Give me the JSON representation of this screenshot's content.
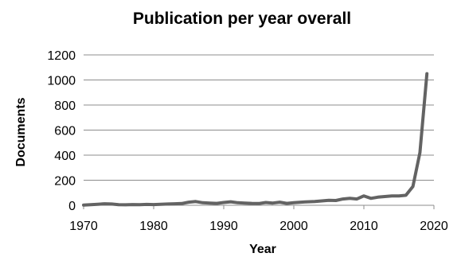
{
  "chart_data": {
    "type": "line",
    "title": "Publication per year overall",
    "xlabel": "Year",
    "ylabel": "Documents",
    "xlim": [
      1970,
      2020
    ],
    "ylim": [
      0,
      1200
    ],
    "xticks": [
      1970,
      1980,
      1990,
      2000,
      2010,
      2020
    ],
    "yticks": [
      0,
      200,
      400,
      600,
      800,
      1000,
      1200
    ],
    "grid": true,
    "legend": "none",
    "color": "#636363",
    "x": [
      1970,
      1971,
      1972,
      1973,
      1974,
      1975,
      1976,
      1977,
      1978,
      1979,
      1980,
      1981,
      1982,
      1983,
      1984,
      1985,
      1986,
      1987,
      1988,
      1989,
      1990,
      1991,
      1992,
      1993,
      1994,
      1995,
      1996,
      1997,
      1998,
      1999,
      2000,
      2001,
      2002,
      2003,
      2004,
      2005,
      2006,
      2007,
      2008,
      2009,
      2010,
      2011,
      2012,
      2013,
      2014,
      2015,
      2016,
      2017,
      2018,
      2019
    ],
    "y": [
      2,
      5,
      8,
      12,
      10,
      5,
      4,
      6,
      5,
      7,
      6,
      8,
      10,
      12,
      14,
      25,
      30,
      20,
      18,
      15,
      22,
      28,
      20,
      18,
      15,
      14,
      22,
      18,
      25,
      15,
      20,
      25,
      28,
      30,
      35,
      40,
      38,
      50,
      55,
      50,
      75,
      55,
      65,
      70,
      75,
      75,
      80,
      150,
      420,
      1050
    ]
  }
}
